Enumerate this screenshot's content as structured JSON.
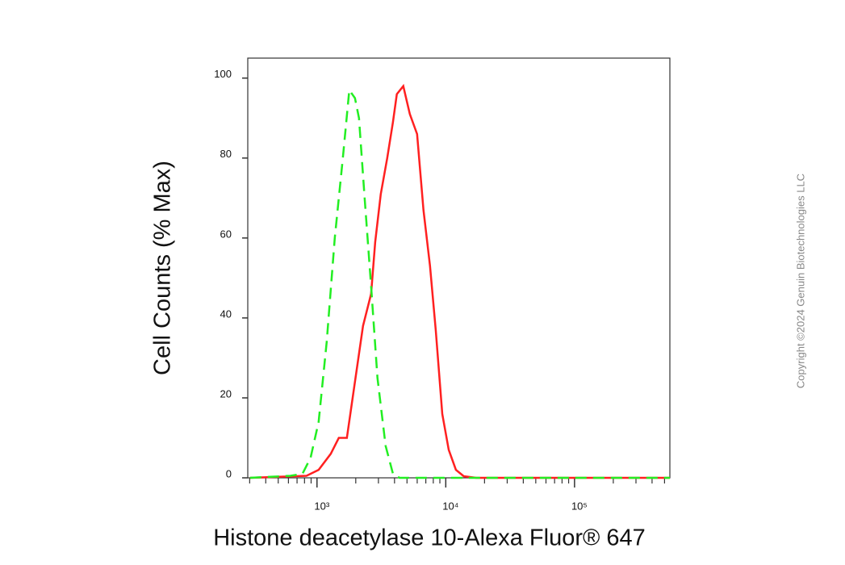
{
  "chart_data": {
    "type": "line",
    "xlabel": "Histone deacetylase 10-Alexa Fluor® 647",
    "ylabel": "Cell Counts (% Max)",
    "watermark": "Copyright ©2024 Genuin Biotechnologies LLC",
    "xscale": "log",
    "xlim": [
      290,
      550000
    ],
    "ylim": [
      0,
      105
    ],
    "xticks": [
      {
        "value": 1000,
        "label": "10³"
      },
      {
        "value": 10000,
        "label": "10⁴"
      },
      {
        "value": 100000,
        "label": "10⁵"
      }
    ],
    "xminorticks": [
      300,
      400,
      500,
      600,
      700,
      800,
      900,
      2000,
      3000,
      4000,
      5000,
      6000,
      7000,
      8000,
      9000,
      20000,
      30000,
      40000,
      50000,
      60000,
      70000,
      80000,
      90000,
      200000,
      300000,
      400000,
      500000
    ],
    "yticks": [
      0,
      20,
      40,
      60,
      80,
      100
    ],
    "series": [
      {
        "color": "#ff2020",
        "dash": false,
        "x": [
          302,
          829,
          1029,
          1278,
          1477,
          1706,
          1971,
          2277,
          2630,
          2830,
          3130,
          3510,
          3890,
          4170,
          4680,
          5260,
          5990,
          6710,
          7540,
          8360,
          9390,
          10540,
          11990,
          13800,
          17200,
          550000
        ],
        "values": [
          0,
          0.5,
          2,
          6,
          10,
          10,
          24,
          38,
          46,
          59,
          71,
          80,
          89,
          96,
          98,
          91,
          86,
          67,
          53,
          37,
          16,
          7,
          2,
          0.4,
          0,
          0
        ]
      },
      {
        "color": "#22ee22",
        "dash": true,
        "x": [
          302,
          621,
          771,
          891,
          1029,
          1189,
          1374,
          1587,
          1781,
          1971,
          2118,
          2344,
          2630,
          2950,
          3410,
          3890,
          4370,
          550000
        ],
        "values": [
          0,
          0.5,
          1,
          5,
          14,
          34,
          60,
          80,
          97,
          95,
          90,
          70,
          48,
          25,
          8,
          1,
          0,
          0
        ]
      }
    ]
  }
}
